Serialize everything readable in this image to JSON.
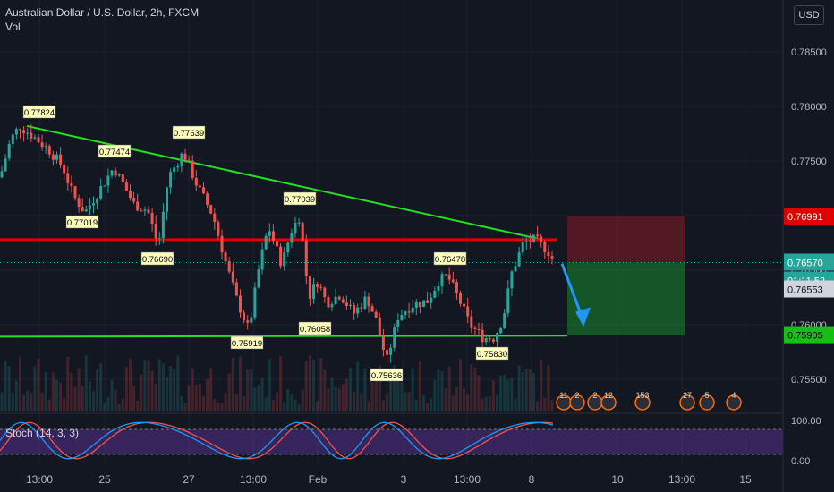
{
  "header": {
    "symbol": "Australian Dollar / U.S. Dollar, 2h, FXCM",
    "volume_label": "Vol"
  },
  "currency_button": "USD",
  "colors": {
    "bg": "#131722",
    "up": "#26a69a",
    "down": "#ef5350",
    "trend_upper": "#22e222",
    "trend_lower": "#22e222",
    "resistance": "#e00000",
    "stoch_k": "#2196f3",
    "stoch_d": "#ef5350",
    "stoch_band": "#4b2a7d"
  },
  "chart_data": {
    "type": "candlestick",
    "ylim": [
      0.752,
      0.789
    ],
    "price_ticks": [
      "0.78500",
      "0.78000",
      "0.77500",
      "0.77000",
      "0.76500",
      "0.76000",
      "0.75500"
    ],
    "x_ticks": [
      "13:00",
      "25",
      "27",
      "13:00",
      "Feb",
      "3",
      "13:00",
      "8",
      "10",
      "13:00",
      "15"
    ],
    "price_labels": [
      "0.76991",
      "0.76570",
      "01:11:52",
      "0.76553",
      "0.75905"
    ],
    "swing_labels": [
      "0.77824",
      "0.77474",
      "0.77639",
      "0.77019",
      "0.76690",
      "0.77039",
      "0.76478",
      "0.75919",
      "0.76058",
      "0.75636",
      "0.75830"
    ],
    "trendlines": {
      "upper": [
        [
          "start",
          0.7782
        ],
        [
          "end",
          0.7678
        ]
      ],
      "lower": [
        [
          "start",
          0.7589
        ],
        [
          "end",
          0.759
        ]
      ],
      "resistance": 0.7678
    },
    "trade": {
      "stop": 0.76991,
      "entry": 0.7657,
      "target": 0.75905
    },
    "stochastic": {
      "label": "Stoch (14, 3, 3)",
      "ticks": [
        "100.00",
        "0.00"
      ]
    },
    "events": [
      "11",
      "2",
      "2",
      "12",
      "153",
      "27",
      "5",
      "4"
    ]
  }
}
